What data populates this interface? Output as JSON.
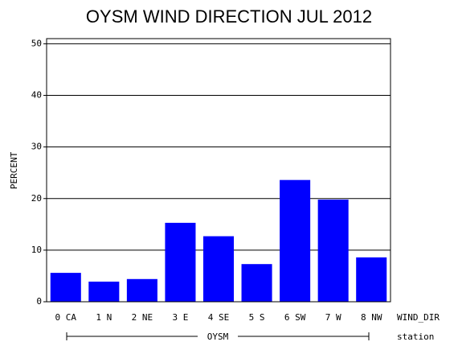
{
  "chart_data": {
    "type": "bar",
    "title": "OYSM WIND DIRECTION JUL 2012",
    "y_label": "PERCENT",
    "x_label": "WIND_DIR",
    "group_label": "OYSM",
    "group_axis_label": "station",
    "categories": [
      "0 CA",
      "1 N",
      "2 NE",
      "3 E",
      "4 SE",
      "5 S",
      "6 SW",
      "7 W",
      "8 NW"
    ],
    "values": [
      5.6,
      3.9,
      4.4,
      15.3,
      12.7,
      7.3,
      23.6,
      19.8,
      8.6
    ],
    "color": "#0000ff",
    "ylim": [
      0,
      51
    ],
    "yticks": [
      0,
      10,
      20,
      30,
      40,
      50
    ],
    "grid": true
  }
}
